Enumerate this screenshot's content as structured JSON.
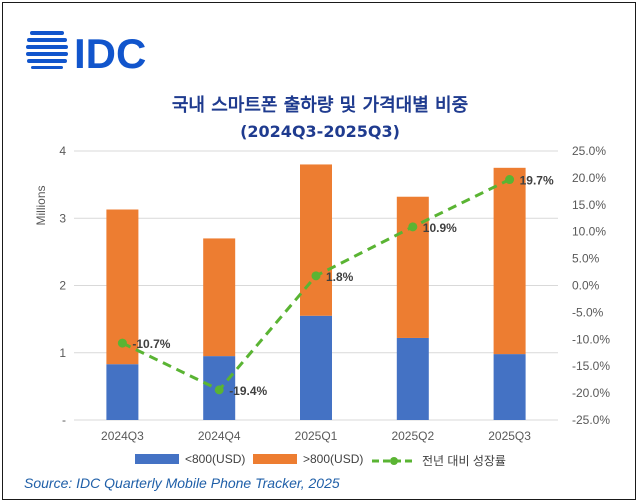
{
  "brand": {
    "logo_text": "IDC",
    "color": "#1155cc"
  },
  "chart_data": {
    "type": "bar",
    "stacked": true,
    "title": "국내 스마트폰 출하량 및 가격대별 비중",
    "subtitle": "(2024Q3-2025Q3)",
    "categories": [
      "2024Q3",
      "2024Q4",
      "2025Q1",
      "2025Q2",
      "2025Q3"
    ],
    "ylabel": "Millions",
    "ylim": [
      0,
      4
    ],
    "yticks": [
      "-",
      "1",
      "2",
      "3",
      "4"
    ],
    "y2lim": [
      -25,
      25
    ],
    "y2ticks": [
      "-25.0%",
      "-20.0%",
      "-15.0%",
      "-10.0%",
      "-5.0%",
      "0.0%",
      "5.0%",
      "10.0%",
      "15.0%",
      "20.0%",
      "25.0%"
    ],
    "series": [
      {
        "name": "<800(USD)",
        "values": [
          0.83,
          0.95,
          1.55,
          1.22,
          0.98
        ],
        "color": "#4472c4"
      },
      {
        "name": ">800(USD)",
        "values": [
          2.3,
          1.75,
          2.25,
          2.1,
          2.77
        ],
        "color": "#ed7d31"
      }
    ],
    "line_series": {
      "name": "전년 대비 성장률",
      "values": [
        -10.7,
        -19.4,
        1.8,
        10.9,
        19.7
      ],
      "labels": [
        "-10.7%",
        "-19.4%",
        "1.8%",
        "10.9%",
        "19.7%"
      ],
      "color": "#5ab433",
      "axis": "secondary"
    },
    "grid": true,
    "legend": "bottom"
  },
  "source": "Source: IDC Quarterly Mobile Phone Tracker, 2025"
}
